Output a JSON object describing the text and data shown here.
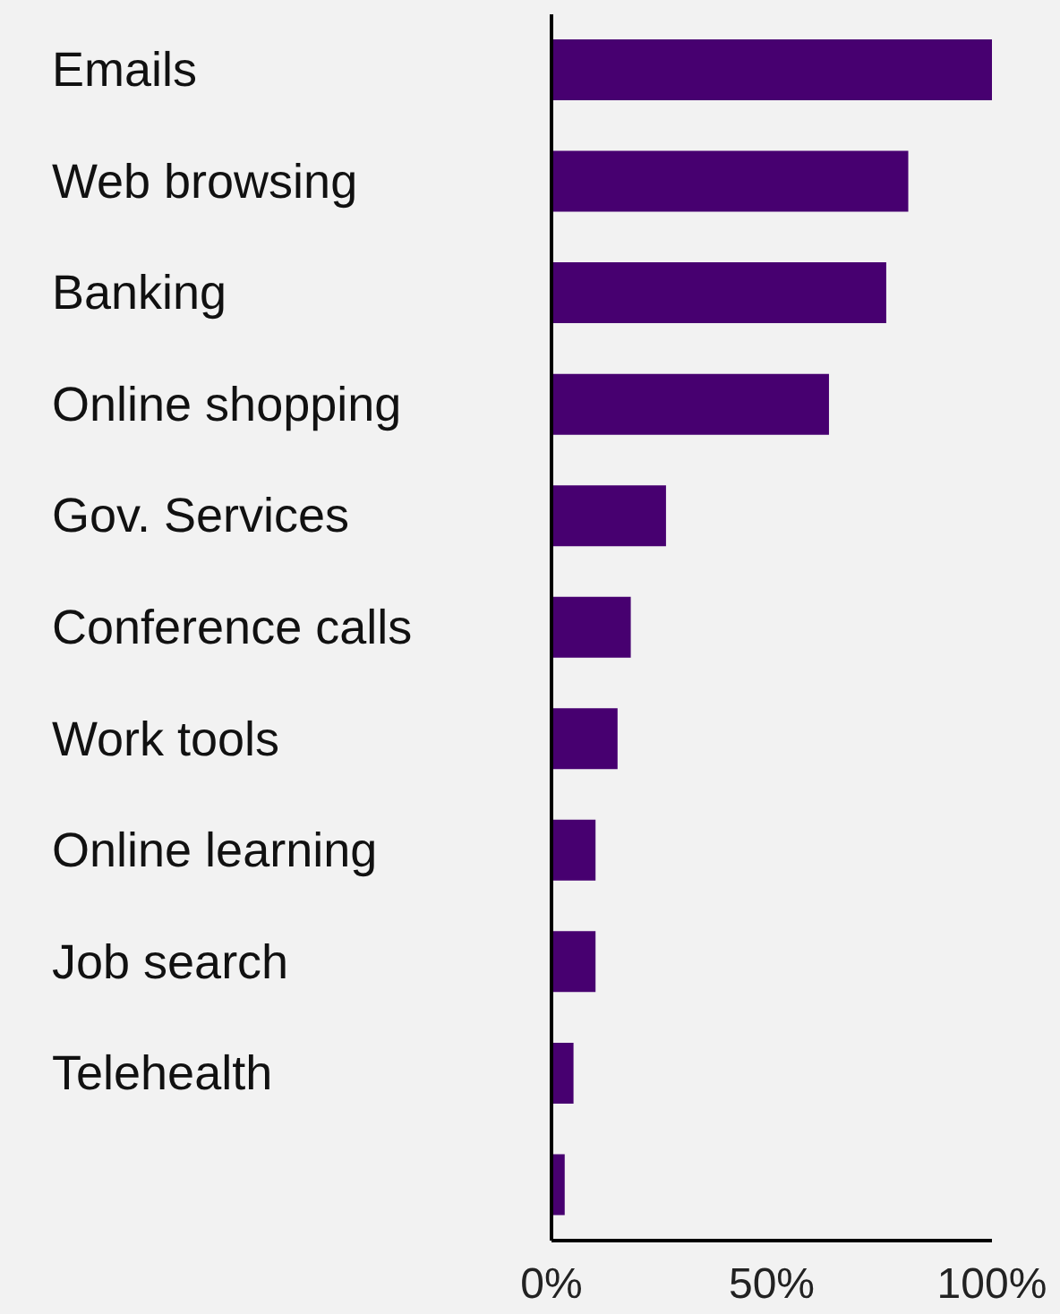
{
  "chart_data": {
    "type": "bar",
    "orientation": "horizontal",
    "categories": [
      "Emails",
      "Web browsing",
      "Banking",
      "Online shopping",
      "Gov. Services",
      "Conference calls",
      "Work tools",
      "Online learning",
      "Job search",
      "Telehealth",
      null
    ],
    "values": [
      100,
      81,
      76,
      63,
      26,
      18,
      15,
      10,
      10,
      5,
      3
    ],
    "color": "#470070",
    "xlim": [
      0,
      100
    ],
    "xticks": [
      {
        "value": 0,
        "label": "0%"
      },
      {
        "value": 50,
        "label": "50%"
      },
      {
        "value": 100,
        "label": "100%"
      }
    ],
    "grid": false,
    "legend": false
  }
}
